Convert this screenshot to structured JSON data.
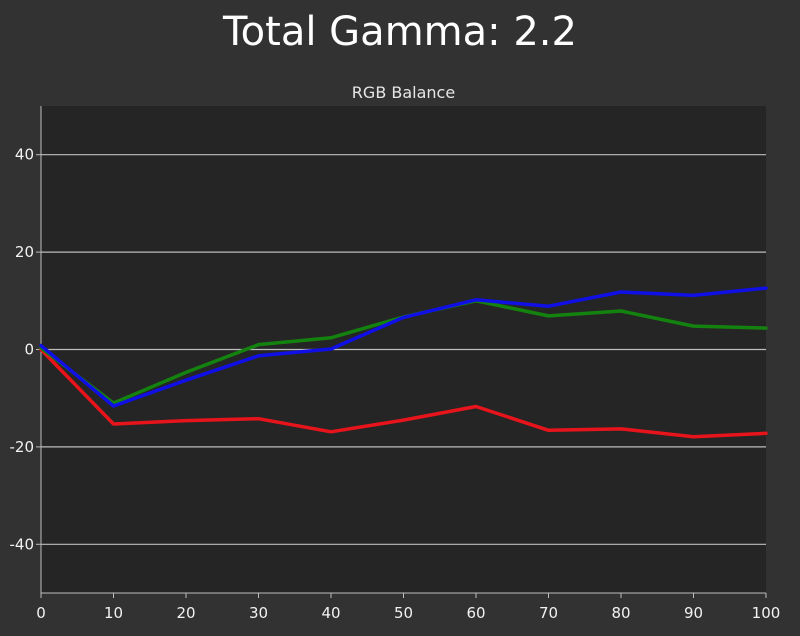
{
  "chart_data": {
    "type": "line",
    "title": "Total Gamma: 2.2",
    "subtitle": "RGB Balance",
    "xlabel": "",
    "ylabel": "",
    "xlim": [
      0,
      100
    ],
    "ylim": [
      -50,
      50
    ],
    "x": [
      0,
      10,
      20,
      30,
      40,
      50,
      60,
      70,
      80,
      90,
      100
    ],
    "xticks": [
      "0",
      "10",
      "20",
      "30",
      "40",
      "50",
      "60",
      "70",
      "80",
      "90",
      "100"
    ],
    "yticks": [
      {
        "value": 40,
        "label": "40"
      },
      {
        "value": 20,
        "label": "20"
      },
      {
        "value": 0,
        "label": "0"
      },
      {
        "value": -20,
        "label": "-20"
      },
      {
        "value": -40,
        "label": "-40"
      }
    ],
    "grid": true,
    "legend": "none",
    "series": [
      {
        "color": "#e8141c",
        "values": [
          0,
          -15.3,
          -14.6,
          -14.2,
          -16.9,
          -14.5,
          -11.7,
          -16.6,
          -16.3,
          -17.9,
          -17.2
        ]
      },
      {
        "color": "#14820f",
        "values": [
          0.3,
          -11.0,
          -4.7,
          1.0,
          2.4,
          6.7,
          10.0,
          6.9,
          7.9,
          4.8,
          4.4
        ]
      },
      {
        "color": "#1010e6",
        "values": [
          0.8,
          -11.6,
          -6.3,
          -1.3,
          0.1,
          6.6,
          10.2,
          8.9,
          11.8,
          11.1,
          12.6
        ]
      }
    ],
    "colors": {
      "page_background": "#323232",
      "plot_background": "#252525",
      "gridline": "#bdbdbd"
    }
  }
}
